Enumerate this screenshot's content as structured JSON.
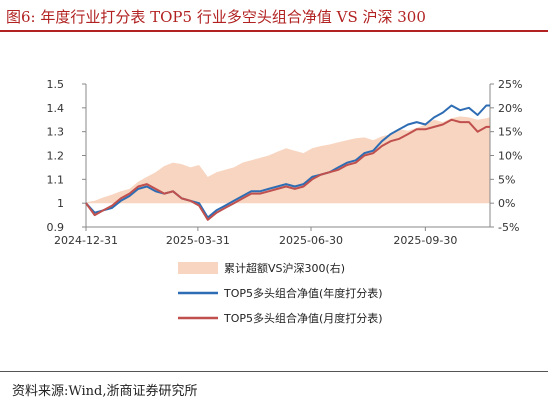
{
  "header": {
    "title": "图6:   年度行业打分表 TOP5 行业多空头组合净值 VS 沪深 300"
  },
  "footer": {
    "source": "资料来源:Wind,浙商证券研究所"
  },
  "colors": {
    "title": "#b22222",
    "excess_fill": "#f8d5c0",
    "annual": "#2e6db4",
    "monthly": "#c0504d"
  },
  "chart_data": {
    "type": "line",
    "title": "",
    "x_ticks": [
      "2024-12-31",
      "2025-03-31",
      "2025-06-30",
      "2025-09-30"
    ],
    "x_range": [
      "2024-12-31",
      "2025-11-21"
    ],
    "y_left": {
      "ticks": [
        "0.9",
        "1",
        "1.1",
        "1.2",
        "1.3",
        "1.4",
        "1.5"
      ],
      "range": [
        0.9,
        1.5
      ]
    },
    "y_right": {
      "ticks": [
        "-5%",
        "0%",
        "5%",
        "10%",
        "15%",
        "20%",
        "25%"
      ],
      "range": [
        -5,
        25
      ],
      "unit": "%"
    },
    "legend_position": "bottom",
    "series": [
      {
        "name": "累计超额VS沪深300(右)",
        "type": "area",
        "axis": "right",
        "color": "#f8d5c0",
        "x": [
          "2024-12-31",
          "2025-01-07",
          "2025-01-14",
          "2025-01-21",
          "2025-01-28",
          "2025-02-04",
          "2025-02-11",
          "2025-02-18",
          "2025-02-25",
          "2025-03-04",
          "2025-03-11",
          "2025-03-18",
          "2025-03-25",
          "2025-04-01",
          "2025-04-08",
          "2025-04-15",
          "2025-04-22",
          "2025-04-29",
          "2025-05-06",
          "2025-05-13",
          "2025-05-20",
          "2025-05-27",
          "2025-06-03",
          "2025-06-10",
          "2025-06-17",
          "2025-06-24",
          "2025-07-01",
          "2025-07-08",
          "2025-07-15",
          "2025-07-22",
          "2025-07-29",
          "2025-08-05",
          "2025-08-12",
          "2025-08-19",
          "2025-08-26",
          "2025-09-02",
          "2025-09-09",
          "2025-09-16",
          "2025-09-23",
          "2025-09-30",
          "2025-10-07",
          "2025-10-14",
          "2025-10-21",
          "2025-10-28",
          "2025-11-04",
          "2025-11-11",
          "2025-11-18",
          "2025-11-21"
        ],
        "values": [
          0.2,
          0.5,
          1.2,
          1.8,
          2.5,
          3.0,
          4.5,
          5.5,
          6.5,
          7.8,
          8.5,
          8.2,
          7.5,
          8.0,
          5.5,
          6.5,
          7.0,
          7.5,
          8.5,
          9.0,
          9.5,
          10.0,
          10.8,
          11.5,
          11.0,
          10.5,
          11.5,
          12.0,
          12.3,
          12.8,
          13.2,
          13.6,
          13.8,
          13.2,
          14.0,
          14.5,
          15.5,
          15.2,
          15.8,
          16.5,
          17.5,
          17.0,
          17.8,
          18.2,
          18.0,
          17.5,
          17.8,
          18.0
        ]
      },
      {
        "name": "TOP5多头组合净值(年度打分表)",
        "type": "line",
        "axis": "left",
        "color": "#2e6db4",
        "x": [
          "2024-12-31",
          "2025-01-07",
          "2025-01-14",
          "2025-01-21",
          "2025-01-28",
          "2025-02-04",
          "2025-02-11",
          "2025-02-18",
          "2025-02-25",
          "2025-03-04",
          "2025-03-11",
          "2025-03-18",
          "2025-03-25",
          "2025-04-01",
          "2025-04-08",
          "2025-04-15",
          "2025-04-22",
          "2025-04-29",
          "2025-05-06",
          "2025-05-13",
          "2025-05-20",
          "2025-05-27",
          "2025-06-03",
          "2025-06-10",
          "2025-06-17",
          "2025-06-24",
          "2025-07-01",
          "2025-07-08",
          "2025-07-15",
          "2025-07-22",
          "2025-07-29",
          "2025-08-05",
          "2025-08-12",
          "2025-08-19",
          "2025-08-26",
          "2025-09-02",
          "2025-09-09",
          "2025-09-16",
          "2025-09-23",
          "2025-09-30",
          "2025-10-07",
          "2025-10-14",
          "2025-10-21",
          "2025-10-28",
          "2025-11-04",
          "2025-11-11",
          "2025-11-18",
          "2025-11-21"
        ],
        "values": [
          1.0,
          0.96,
          0.97,
          0.98,
          1.01,
          1.03,
          1.06,
          1.07,
          1.05,
          1.04,
          1.05,
          1.02,
          1.01,
          1.0,
          0.94,
          0.97,
          0.99,
          1.01,
          1.03,
          1.05,
          1.05,
          1.06,
          1.07,
          1.08,
          1.07,
          1.08,
          1.11,
          1.12,
          1.13,
          1.15,
          1.17,
          1.18,
          1.21,
          1.22,
          1.26,
          1.29,
          1.31,
          1.33,
          1.34,
          1.33,
          1.36,
          1.38,
          1.41,
          1.39,
          1.4,
          1.37,
          1.41,
          1.41
        ]
      },
      {
        "name": "TOP5多头组合净值(月度打分表)",
        "type": "line",
        "axis": "left",
        "color": "#c0504d",
        "x": [
          "2024-12-31",
          "2025-01-07",
          "2025-01-14",
          "2025-01-21",
          "2025-01-28",
          "2025-02-04",
          "2025-02-11",
          "2025-02-18",
          "2025-02-25",
          "2025-03-04",
          "2025-03-11",
          "2025-03-18",
          "2025-03-25",
          "2025-04-01",
          "2025-04-08",
          "2025-04-15",
          "2025-04-22",
          "2025-04-29",
          "2025-05-06",
          "2025-05-13",
          "2025-05-20",
          "2025-05-27",
          "2025-06-03",
          "2025-06-10",
          "2025-06-17",
          "2025-06-24",
          "2025-07-01",
          "2025-07-08",
          "2025-07-15",
          "2025-07-22",
          "2025-07-29",
          "2025-08-05",
          "2025-08-12",
          "2025-08-19",
          "2025-08-26",
          "2025-09-02",
          "2025-09-09",
          "2025-09-16",
          "2025-09-23",
          "2025-09-30",
          "2025-10-07",
          "2025-10-14",
          "2025-10-21",
          "2025-10-28",
          "2025-11-04",
          "2025-11-11",
          "2025-11-18",
          "2025-11-21"
        ],
        "values": [
          1.0,
          0.95,
          0.97,
          0.99,
          1.02,
          1.04,
          1.07,
          1.08,
          1.06,
          1.04,
          1.05,
          1.02,
          1.01,
          0.99,
          0.93,
          0.96,
          0.98,
          1.0,
          1.02,
          1.04,
          1.04,
          1.05,
          1.06,
          1.07,
          1.06,
          1.07,
          1.1,
          1.12,
          1.13,
          1.14,
          1.16,
          1.17,
          1.2,
          1.21,
          1.24,
          1.26,
          1.27,
          1.29,
          1.31,
          1.31,
          1.32,
          1.33,
          1.35,
          1.34,
          1.34,
          1.3,
          1.32,
          1.32
        ]
      }
    ]
  }
}
